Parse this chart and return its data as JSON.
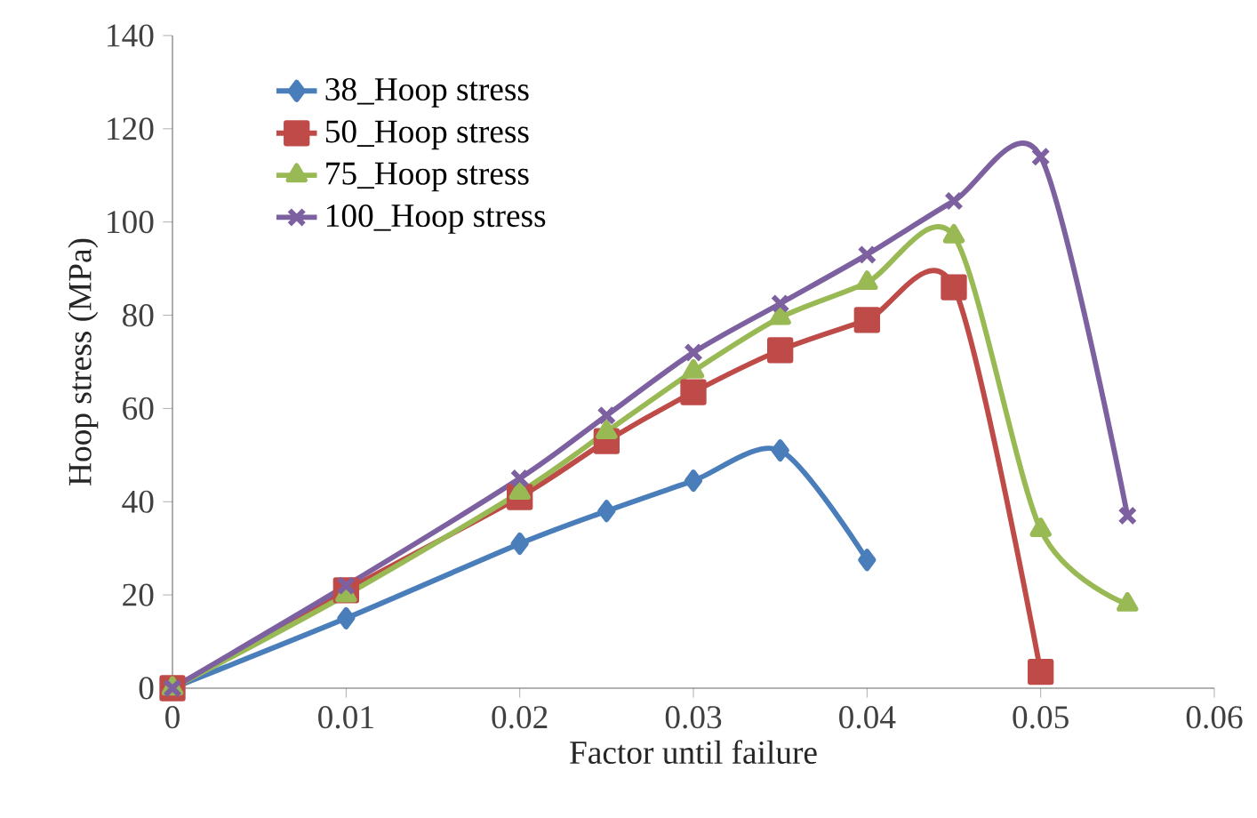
{
  "chart_data": {
    "type": "line",
    "xlabel": "Factor until failure",
    "ylabel": "Hoop stress (MPa)",
    "xlim": [
      0,
      0.06
    ],
    "xticks": [
      0,
      0.01,
      0.02,
      0.03,
      0.04,
      0.05,
      0.06
    ],
    "ylim": [
      0,
      140
    ],
    "yticks": [
      0,
      20,
      40,
      60,
      80,
      100,
      120,
      140
    ],
    "grid": false,
    "legend": "top left",
    "series": [
      {
        "name": "38_Hoop stress",
        "color": "#4a7ebb",
        "marker": "diamond",
        "x": [
          0,
          0.01,
          0.02,
          0.025,
          0.03,
          0.035,
          0.04
        ],
        "values": [
          0,
          15,
          31,
          38,
          44.5,
          51,
          27.5
        ]
      },
      {
        "name": "50_Hoop stress",
        "color": "#be4b48",
        "marker": "square",
        "x": [
          0,
          0.01,
          0.02,
          0.025,
          0.03,
          0.035,
          0.04,
          0.045,
          0.05
        ],
        "values": [
          0,
          21,
          41,
          53,
          63.5,
          72.5,
          79,
          86,
          3.5
        ]
      },
      {
        "name": "75_Hoop stress",
        "color": "#98b954",
        "marker": "triangle",
        "x": [
          0,
          0.01,
          0.02,
          0.025,
          0.03,
          0.035,
          0.04,
          0.045,
          0.05,
          0.055
        ],
        "values": [
          0,
          20,
          42,
          55,
          68,
          79.5,
          87,
          97,
          34,
          18
        ]
      },
      {
        "name": "100_Hoop stress",
        "color": "#7d60a0",
        "marker": "cross",
        "x": [
          0,
          0.01,
          0.02,
          0.025,
          0.03,
          0.035,
          0.04,
          0.045,
          0.05,
          0.055
        ],
        "values": [
          0,
          22,
          45,
          58.5,
          72,
          82.5,
          93,
          104.5,
          114,
          37
        ]
      }
    ]
  }
}
